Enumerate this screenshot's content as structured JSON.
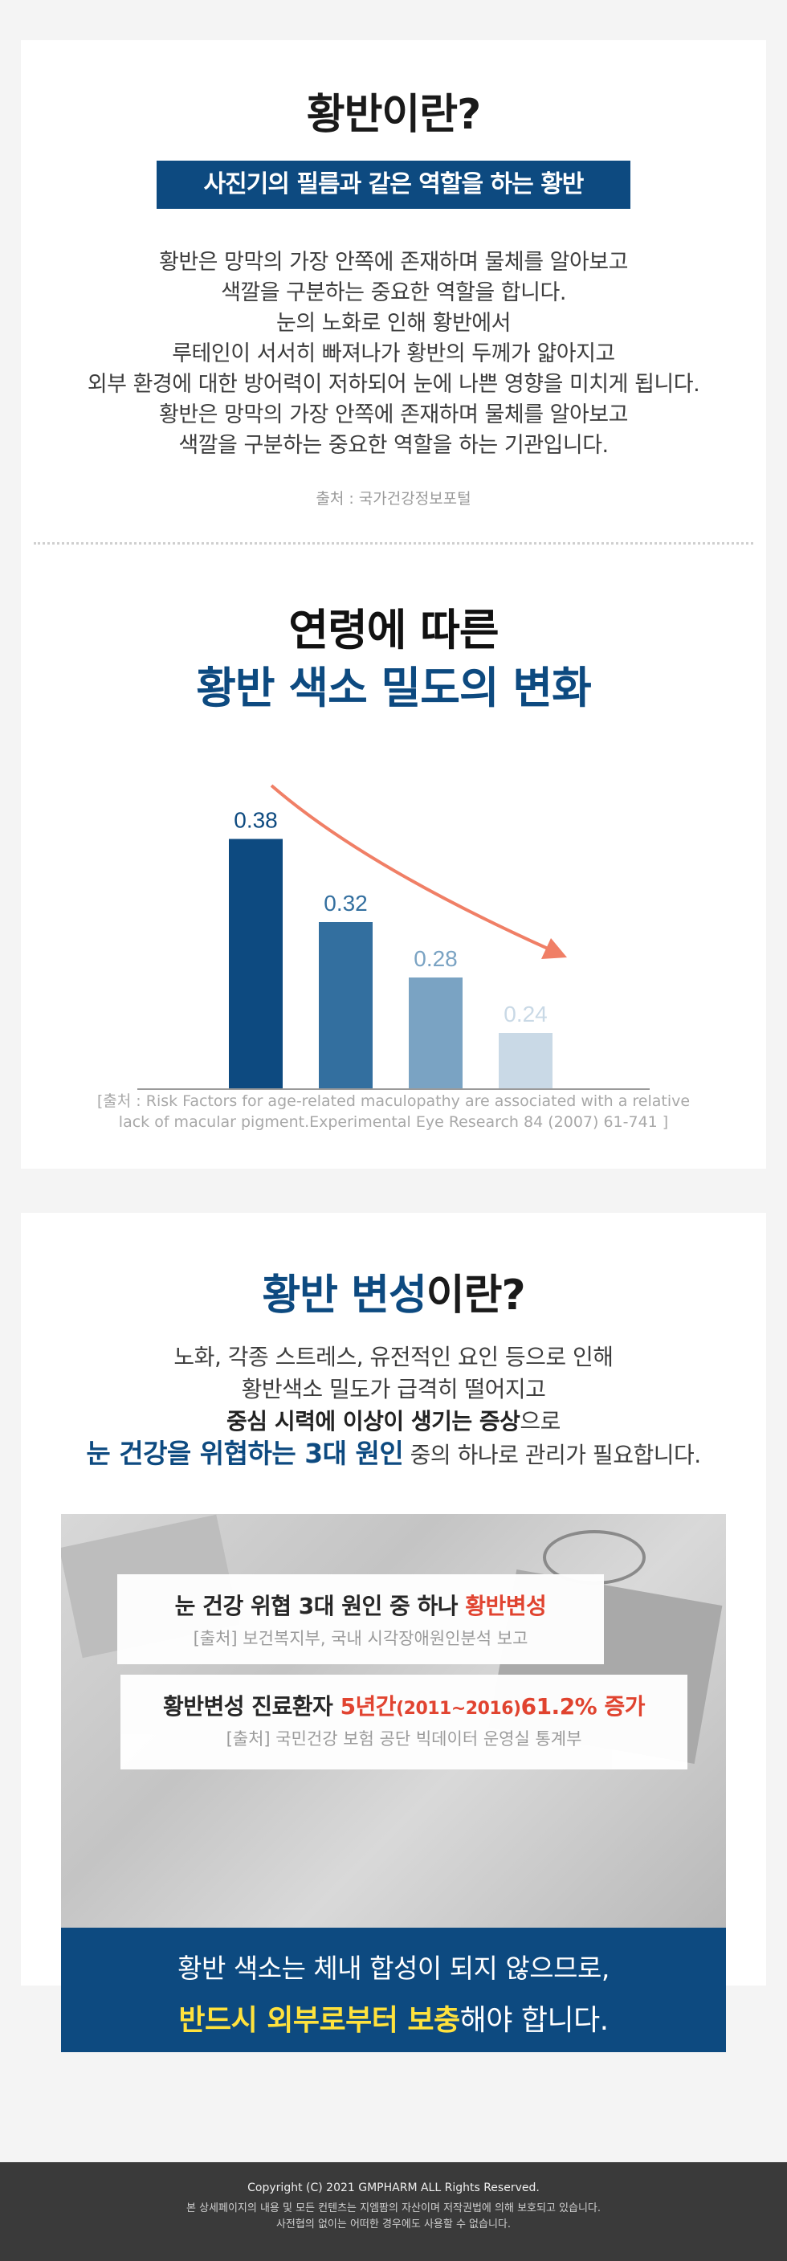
{
  "section1": {
    "title": "황반이란?",
    "badge": "사진기의 필름과 같은 역할을 하는 황반",
    "body_lines": [
      "황반은 망막의 가장 안쪽에 존재하며 물체를 알아보고",
      "색깔을 구분하는 중요한 역할을 합니다.",
      "눈의 노화로 인해 황반에서",
      "루테인이 서서히 빠져나가 황반의 두께가 얇아지고",
      "외부 환경에 대한 방어력이 저하되어 눈에 나쁜 영향을 미치게 됩니다.",
      "황반은 망막의 가장 안쪽에 존재하며 물체를 알아보고",
      "색깔을 구분하는 중요한 역할을 하는 기관입니다."
    ],
    "source": "출처 : 국가건강정보포털"
  },
  "section2": {
    "title_line1": "연령에 따른",
    "title_line2": "황반 색소 밀도의 변화",
    "source_line1": "[출처 : Risk Factors for age-related maculopathy are associated with a relative",
    "source_line2": "lack of macular pigment.Experimental Eye Research 84 (2007) 61-741 ]"
  },
  "chart_data": {
    "type": "bar",
    "values": [
      0.38,
      0.32,
      0.28,
      0.24
    ],
    "labels": [
      "0.38",
      "0.32",
      "0.28",
      "0.24"
    ],
    "colors": [
      "#0d4a80",
      "#336f9f",
      "#7aa3c3",
      "#c9d9e6"
    ],
    "label_colors": [
      "#0d4a80",
      "#336f9f",
      "#7aa3c3",
      "#c9d9e6"
    ],
    "trend_arrow_color": "#f07f66",
    "axis_color": "#9a9a9a",
    "ylim": [
      0,
      0.4
    ],
    "grid": false
  },
  "section3": {
    "title_blue": "황반 변성",
    "title_dark": "이란?",
    "line1": "노화, 각종 스트레스, 유전적인 요인 등으로 인해",
    "line2": "황반색소 밀도가 급격히 떨어지고",
    "line3_bold": "중심 시력에 이상이 생기는 증상",
    "line3_rest": "으로",
    "line4_bold": "눈 건강을 위협하는 3대 원인",
    "line4_rest": " 중의 하나로 관리가 필요합니다.",
    "box1_main": "눈 건강 위협 3대 원인 중 하나 ",
    "box1_red": "황반변성",
    "box1_sub": "[출처] 보건복지부, 국내 시각장애원인분석 보고",
    "box2_main": "황반변성 진료환자 ",
    "box2_red1": "5년간",
    "box2_red_small": "(2011~2016)",
    "box2_red2": "61.2% 증가",
    "box2_sub": "[출처] 국민건강 보험 공단 빅데이터 운영실 통계부",
    "banner_line1": "황반 색소는 체내 합성이 되지 않으므로,",
    "banner_yellow": "반드시 외부로부터 보충",
    "banner_rest": "해야 합니다.",
    "photo_name": "eye-exam-desk-photo"
  },
  "footer": {
    "copyright": "Copyright (C) 2021 GMPHARM ALL Rights Reserved.",
    "notice1": "본 상세페이지의 내용 및 모든 컨텐츠는 지엠팜의 자산이며 저작권법에 의해 보호되고 있습니다.",
    "notice2": "사전협의 없이는 어떠한 경우에도 사용할 수 없습니다."
  }
}
